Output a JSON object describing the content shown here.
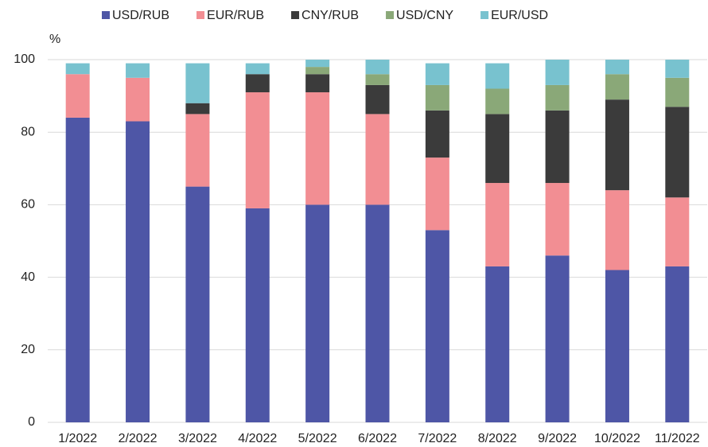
{
  "chart_data": {
    "type": "stacked_bar",
    "y_axis_label": "%",
    "categories": [
      "1/2022",
      "2/2022",
      "3/2022",
      "4/2022",
      "5/2022",
      "6/2022",
      "7/2022",
      "8/2022",
      "9/2022",
      "10/2022",
      "11/2022"
    ],
    "series": [
      {
        "name": "USD/RUB",
        "color": "#4e56a6",
        "values": [
          84,
          83,
          65,
          59,
          60,
          60,
          53,
          43,
          46,
          42,
          43
        ]
      },
      {
        "name": "EUR/RUB",
        "color": "#f28e93",
        "values": [
          12,
          12,
          20,
          32,
          31,
          25,
          20,
          23,
          20,
          22,
          19
        ]
      },
      {
        "name": "CNY/RUB",
        "color": "#3b3b3b",
        "values": [
          0,
          0,
          3,
          5,
          5,
          8,
          13,
          19,
          20,
          25,
          25
        ]
      },
      {
        "name": "USD/CNY",
        "color": "#8aa878",
        "values": [
          0,
          0,
          0,
          0,
          2,
          3,
          7,
          7,
          7,
          7,
          8
        ]
      },
      {
        "name": "EUR/USD",
        "color": "#78c2cf",
        "values": [
          3,
          4,
          11,
          3,
          2,
          4,
          6,
          7,
          7,
          4,
          5
        ]
      }
    ],
    "ylim": [
      0,
      100
    ],
    "yticks": [
      0,
      20,
      40,
      60,
      80,
      100
    ],
    "grid": true,
    "legend": "top"
  }
}
